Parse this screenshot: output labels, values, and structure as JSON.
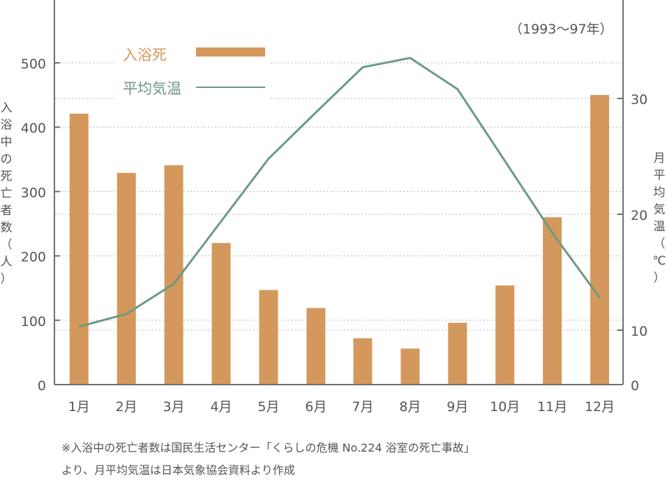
{
  "chart_data": {
    "type": "bar+line",
    "categories": [
      "1月",
      "2月",
      "3月",
      "4月",
      "5月",
      "6月",
      "7月",
      "8月",
      "9月",
      "10月",
      "11月",
      "12月"
    ],
    "series": [
      {
        "name": "入浴死",
        "type": "bar",
        "axis": "left",
        "color": "#d4985c",
        "values": [
          421,
          329,
          341,
          220,
          147,
          119,
          72,
          56,
          96,
          154,
          260,
          450
        ]
      },
      {
        "name": "平均気温",
        "type": "line",
        "axis": "right",
        "color": "#6b9a82",
        "values": [
          10.3,
          11.4,
          14.0,
          19.4,
          24.8,
          28.8,
          32.7,
          33.5,
          30.8,
          24.6,
          18.4,
          12.8
        ]
      }
    ],
    "left_axis": {
      "label": [
        "入",
        "浴",
        "中",
        "の",
        "死",
        "亡",
        "者",
        "数",
        "（",
        "人",
        "）"
      ],
      "ticks": [
        0,
        100,
        200,
        300,
        400,
        500
      ],
      "range": [
        0,
        600
      ]
    },
    "right_axis": {
      "label": [
        "月",
        "平",
        "均",
        "気",
        "温",
        "（",
        "℃",
        "）"
      ],
      "ticks": [
        0,
        10,
        20,
        30
      ],
      "range": [
        5.3,
        38.5
      ]
    },
    "period_note": "（1993～97年）",
    "grid": "horizontal-dashed",
    "legend_position": "top-left"
  },
  "footnotes": [
    "※入浴中の死亡者数は国民生活センター「くらしの危機 No.224 浴室の死亡事故」",
    "より、月平均気温は日本気象協会資料より作成"
  ]
}
